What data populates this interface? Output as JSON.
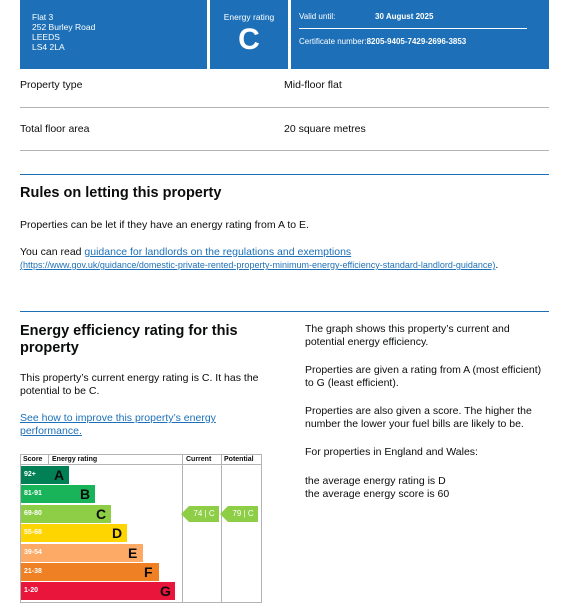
{
  "header": {
    "address": [
      "Flat 3",
      "252 Burley Road",
      "LEEDS",
      "LS4 2LA"
    ],
    "rating_label": "Energy rating",
    "rating_letter": "C",
    "valid_label": "Valid until:",
    "valid_value": "30 August 2025",
    "cert_label": "Certificate number:",
    "cert_value": "8205-9405-7429-2696-3853"
  },
  "property": {
    "type_label": "Property type",
    "type_value": "Mid-floor flat",
    "area_label": "Total floor area",
    "area_value": "20 square metres"
  },
  "letting": {
    "heading": "Rules on letting this property",
    "p1": "Properties can be let if they have an energy rating from A to E.",
    "p2_prefix": "You can read ",
    "p2_link": "guidance for landlords on the regulations and exemptions",
    "p2_url": "(https://www.gov.uk/guidance/domestic-private-rented-property-minimum-energy-efficiency-standard-landlord-guidance)",
    "p2_suffix": "."
  },
  "efficiency": {
    "heading": "Energy efficiency rating for this property",
    "p1": "This property’s current energy rating is C. It has the potential to be C.",
    "link": "See how to improve this property’s energy performance.",
    "right_p1": "The graph shows this property’s current and potential energy efficiency.",
    "right_p2": "Properties are given a rating from A (most efficient) to G (least efficient).",
    "right_p3": "Properties are also given a score. The higher the number the lower your fuel bills are likely to be.",
    "right_p4": "For properties in England and Wales:",
    "right_p5a": "the average energy rating is D",
    "right_p5b": "the average energy score is 60"
  },
  "chart_data": {
    "type": "table",
    "headers": {
      "score": "Score",
      "rating": "Energy rating",
      "current": "Current",
      "potential": "Potential"
    },
    "bands": [
      {
        "range": "92+",
        "letter": "A",
        "color": "#008054"
      },
      {
        "range": "81-91",
        "letter": "B",
        "color": "#19b459"
      },
      {
        "range": "69-80",
        "letter": "C",
        "color": "#8dce46"
      },
      {
        "range": "55-68",
        "letter": "D",
        "color": "#ffd500"
      },
      {
        "range": "39-54",
        "letter": "E",
        "color": "#fcaa65"
      },
      {
        "range": "21-38",
        "letter": "F",
        "color": "#ef8023"
      },
      {
        "range": "1-20",
        "letter": "G",
        "color": "#e9153b"
      }
    ],
    "current": {
      "score": 74,
      "letter": "C",
      "label": "74 | C"
    },
    "potential": {
      "score": 79,
      "letter": "C",
      "label": "79 | C"
    }
  }
}
